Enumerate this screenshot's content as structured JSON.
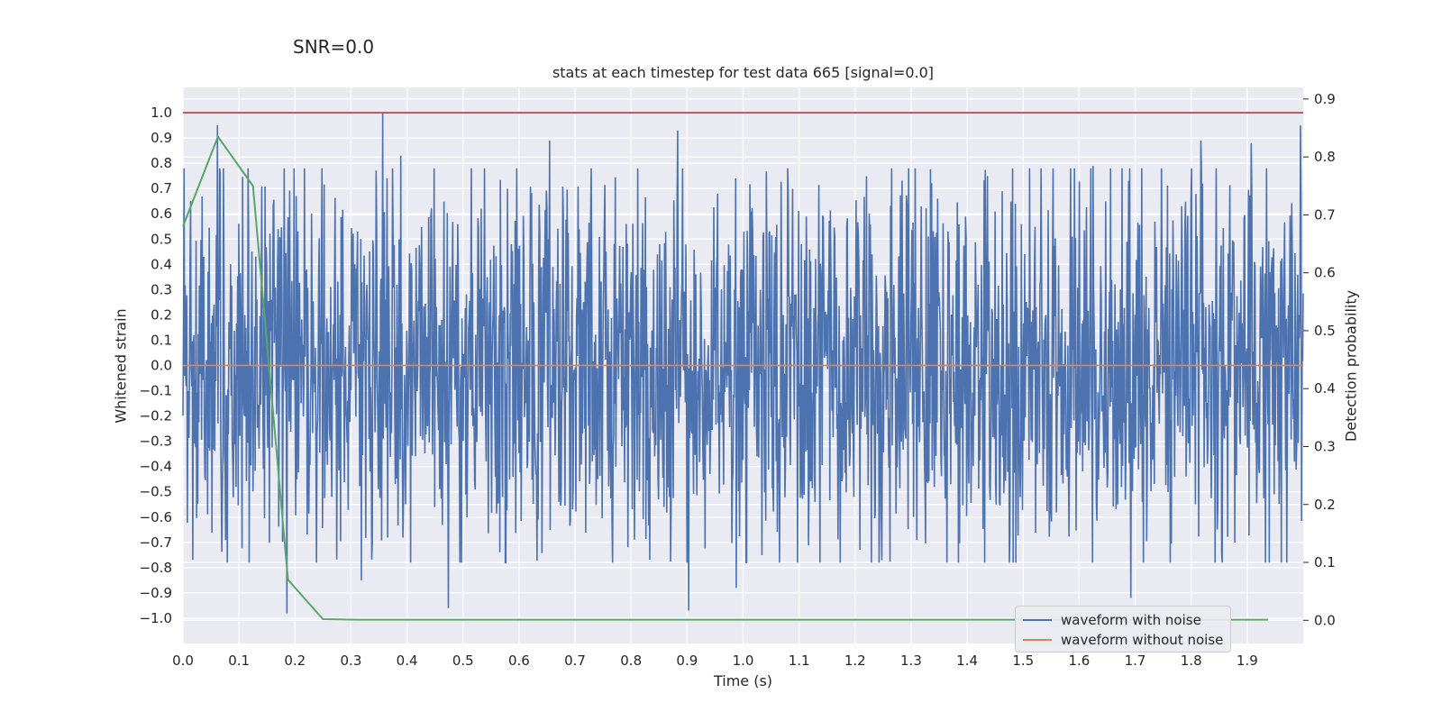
{
  "header": {
    "snr_text": "SNR=0.0"
  },
  "chart_data": {
    "type": "line",
    "title": "stats at each timestep for test data 665 [signal=0.0]",
    "xlabel": "Time (s)",
    "ylabel": "Whitened strain",
    "ylabel_right": "Detection probability",
    "xlim": [
      0.0,
      2.0
    ],
    "ylim": [
      -1.1,
      1.1
    ],
    "ylim_right": [
      -0.04,
      0.92
    ],
    "x_ticks": [
      0.0,
      0.1,
      0.2,
      0.3,
      0.4,
      0.5,
      0.6,
      0.7,
      0.8,
      0.9,
      1.0,
      1.1,
      1.2,
      1.3,
      1.4,
      1.5,
      1.6,
      1.7,
      1.8,
      1.9
    ],
    "y_ticks": [
      1.0,
      0.9,
      0.8,
      0.7,
      0.6,
      0.5,
      0.4,
      0.3,
      0.2,
      0.1,
      0.0,
      -0.1,
      -0.2,
      -0.3,
      -0.4,
      -0.5,
      -0.6,
      -0.7,
      -0.8,
      -0.9,
      -1.0
    ],
    "y_ticks_right": [
      0.9,
      0.8,
      0.7,
      0.6,
      0.5,
      0.4,
      0.3,
      0.2,
      0.1,
      0.0
    ],
    "x_tick_labels": [
      "0.0",
      "0.1",
      "0.2",
      "0.3",
      "0.4",
      "0.5",
      "0.6",
      "0.7",
      "0.8",
      "0.9",
      "1.0",
      "1.1",
      "1.2",
      "1.3",
      "1.4",
      "1.5",
      "1.6",
      "1.7",
      "1.8",
      "1.9"
    ],
    "y_tick_labels": [
      "1.0",
      "0.9",
      "0.8",
      "0.7",
      "0.6",
      "0.5",
      "0.4",
      "0.3",
      "0.2",
      "0.1",
      "0.0",
      "−0.1",
      "−0.2",
      "−0.3",
      "−0.4",
      "−0.5",
      "−0.6",
      "−0.7",
      "−0.8",
      "−0.9",
      "−1.0"
    ],
    "y_tick_labels_right": [
      "0.9",
      "0.8",
      "0.7",
      "0.6",
      "0.5",
      "0.4",
      "0.3",
      "0.2",
      "0.1",
      "0.0"
    ],
    "grid": true,
    "series": [
      {
        "name": "waveform with noise",
        "color": "#4c72b0",
        "axis": "left",
        "description": "whitened noisy strain, 2048 samples over 0-2 s, approximately uniform in [-1, 1]",
        "n_points": 2048,
        "random_seed": 665,
        "x_range": [
          0.0,
          2.0
        ],
        "peaks": [
          {
            "x": 0.062,
            "y": 0.95
          },
          {
            "x": 0.357,
            "y": 1.0
          },
          {
            "x": 0.389,
            "y": 0.83
          },
          {
            "x": 0.655,
            "y": 0.89
          },
          {
            "x": 0.883,
            "y": 0.93
          },
          {
            "x": 1.625,
            "y": 0.79
          },
          {
            "x": 1.817,
            "y": 0.89
          },
          {
            "x": 1.907,
            "y": 0.88
          },
          {
            "x": 1.995,
            "y": 0.95
          },
          {
            "x": 0.186,
            "y": -0.98
          },
          {
            "x": 0.474,
            "y": -0.96
          },
          {
            "x": 0.903,
            "y": -0.97
          },
          {
            "x": 1.692,
            "y": -0.92
          },
          {
            "x": 0.319,
            "y": -0.85
          },
          {
            "x": 0.988,
            "y": -0.88
          }
        ]
      },
      {
        "name": "waveform without noise",
        "color": "#dd8452",
        "axis": "left",
        "x": [
          0.0,
          2.0
        ],
        "y": [
          0.0,
          0.0
        ]
      },
      {
        "name": "detection probability",
        "color": "#55a868",
        "axis": "right",
        "x": [
          0.0,
          0.0625,
          0.125,
          0.1875,
          0.25,
          0.3125,
          0.375,
          0.4375,
          0.5,
          0.5625,
          0.625,
          0.6875,
          0.75,
          0.8125,
          0.875,
          0.9375,
          1.0,
          1.0625,
          1.125,
          1.1875,
          1.25,
          1.3125,
          1.375,
          1.4375,
          1.5,
          1.5625,
          1.625,
          1.6875,
          1.75,
          1.8125,
          1.875,
          1.9375
        ],
        "y": [
          0.68,
          0.835,
          0.75,
          0.07,
          0.002,
          0.001,
          0.001,
          0.001,
          0.001,
          0.001,
          0.001,
          0.001,
          0.001,
          0.001,
          0.001,
          0.001,
          0.001,
          0.001,
          0.001,
          0.001,
          0.001,
          0.001,
          0.001,
          0.001,
          0.001,
          0.001,
          0.001,
          0.001,
          0.001,
          0.001,
          0.001,
          0.001
        ]
      },
      {
        "name": "threshold",
        "color": "#c44e52",
        "axis": "left",
        "x": [
          0.0,
          2.0
        ],
        "y": [
          1.0,
          1.0
        ]
      }
    ],
    "legend": {
      "location": "lower-right",
      "entries": [
        {
          "label": "waveform with noise",
          "color": "#4c72b0"
        },
        {
          "label": "waveform without noise",
          "color": "#dd8452"
        }
      ]
    }
  }
}
